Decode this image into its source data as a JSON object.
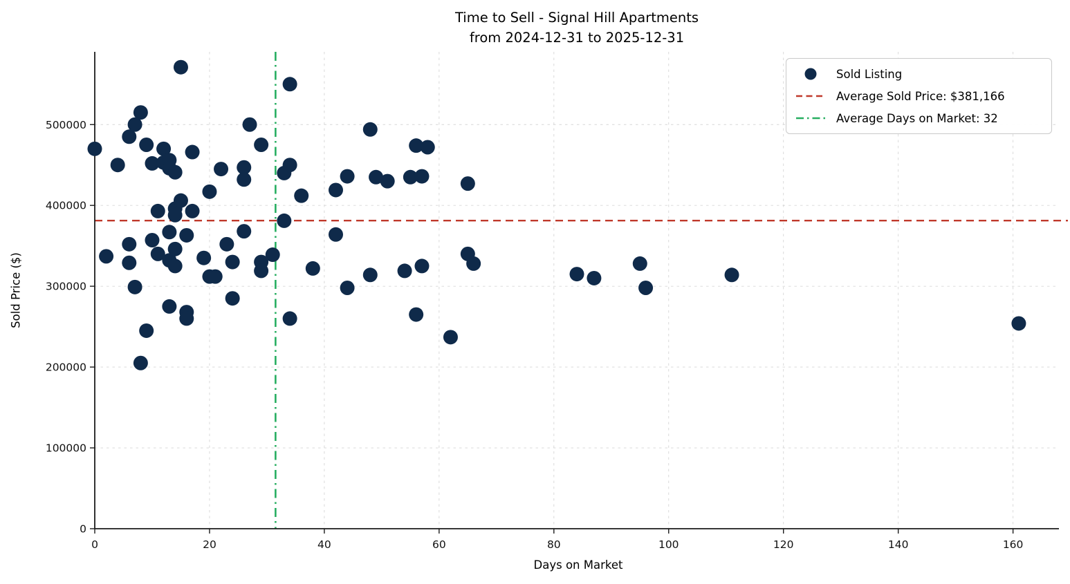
{
  "chart_data": {
    "type": "scatter",
    "title": "Time to Sell - Signal Hill Apartments",
    "subtitle": "from 2024-12-31 to 2025-12-31",
    "xlabel": "Days on Market",
    "ylabel": "Sold Price ($)",
    "xlim": [
      0,
      168
    ],
    "ylim": [
      0,
      590000
    ],
    "xticks": [
      0,
      20,
      40,
      60,
      80,
      100,
      120,
      140,
      160
    ],
    "yticks": [
      0,
      100000,
      200000,
      300000,
      400000,
      500000
    ],
    "grid": true,
    "legend_position": "upper right",
    "series": [
      {
        "name": "Sold Listing",
        "marker": "circle",
        "color": "#0f2a4a",
        "points": [
          [
            0,
            470000
          ],
          [
            2,
            337000
          ],
          [
            4,
            450000
          ],
          [
            6,
            485000
          ],
          [
            6,
            352000
          ],
          [
            6,
            329000
          ],
          [
            7,
            500000
          ],
          [
            7,
            299000
          ],
          [
            8,
            515000
          ],
          [
            8,
            205000
          ],
          [
            9,
            475000
          ],
          [
            9,
            245000
          ],
          [
            10,
            452000
          ],
          [
            10,
            357000
          ],
          [
            11,
            393000
          ],
          [
            11,
            340000
          ],
          [
            12,
            470000
          ],
          [
            12,
            453000
          ],
          [
            13,
            456000
          ],
          [
            13,
            446000
          ],
          [
            13,
            367000
          ],
          [
            13,
            332000
          ],
          [
            13,
            275000
          ],
          [
            14,
            441000
          ],
          [
            14,
            396000
          ],
          [
            14,
            388000
          ],
          [
            14,
            346000
          ],
          [
            14,
            325000
          ],
          [
            15,
            571000
          ],
          [
            15,
            406000
          ],
          [
            16,
            363000
          ],
          [
            16,
            268000
          ],
          [
            16,
            260000
          ],
          [
            17,
            466000
          ],
          [
            17,
            393000
          ],
          [
            19,
            335000
          ],
          [
            20,
            417000
          ],
          [
            20,
            312000
          ],
          [
            21,
            312000
          ],
          [
            22,
            445000
          ],
          [
            23,
            352000
          ],
          [
            24,
            330000
          ],
          [
            24,
            285000
          ],
          [
            26,
            447000
          ],
          [
            26,
            432000
          ],
          [
            26,
            368000
          ],
          [
            27,
            500000
          ],
          [
            29,
            475000
          ],
          [
            29,
            330000
          ],
          [
            29,
            319000
          ],
          [
            31,
            339000
          ],
          [
            33,
            440000
          ],
          [
            33,
            381000
          ],
          [
            34,
            550000
          ],
          [
            34,
            450000
          ],
          [
            34,
            260000
          ],
          [
            36,
            412000
          ],
          [
            38,
            322000
          ],
          [
            42,
            419000
          ],
          [
            42,
            364000
          ],
          [
            44,
            436000
          ],
          [
            44,
            298000
          ],
          [
            48,
            494000
          ],
          [
            48,
            314000
          ],
          [
            49,
            435000
          ],
          [
            51,
            430000
          ],
          [
            54,
            319000
          ],
          [
            55,
            435000
          ],
          [
            56,
            474000
          ],
          [
            56,
            265000
          ],
          [
            57,
            436000
          ],
          [
            57,
            325000
          ],
          [
            58,
            472000
          ],
          [
            62,
            237000
          ],
          [
            65,
            427000
          ],
          [
            65,
            340000
          ],
          [
            66,
            328000
          ],
          [
            84,
            315000
          ],
          [
            87,
            310000
          ],
          [
            95,
            328000
          ],
          [
            96,
            298000
          ],
          [
            111,
            314000
          ],
          [
            161,
            254000
          ]
        ]
      }
    ],
    "reference_lines": [
      {
        "name": "average-sold-price",
        "label": "Average Sold Price: $381,166",
        "orientation": "horizontal",
        "value": 381166,
        "color": "#c0392b",
        "style": "dashed"
      },
      {
        "name": "average-days-on-market",
        "label": "Average Days on Market: 32",
        "orientation": "vertical",
        "value": 31.5,
        "display_value": 32,
        "color": "#27ae60",
        "style": "dashdot"
      }
    ]
  },
  "legend": {
    "items": [
      {
        "label": "Sold Listing",
        "swatch": "navy-dot"
      },
      {
        "label": "Average Sold Price: $381,166",
        "swatch": "red-dashed-line"
      },
      {
        "label": "Average Days on Market: 32",
        "swatch": "green-dashdot-line"
      }
    ]
  },
  "colors": {
    "marker": "#0f2a4a",
    "avg_price_line": "#c0392b",
    "avg_days_line": "#27ae60",
    "grid": "#c9c9c9",
    "spine": "#1a1a1a"
  }
}
